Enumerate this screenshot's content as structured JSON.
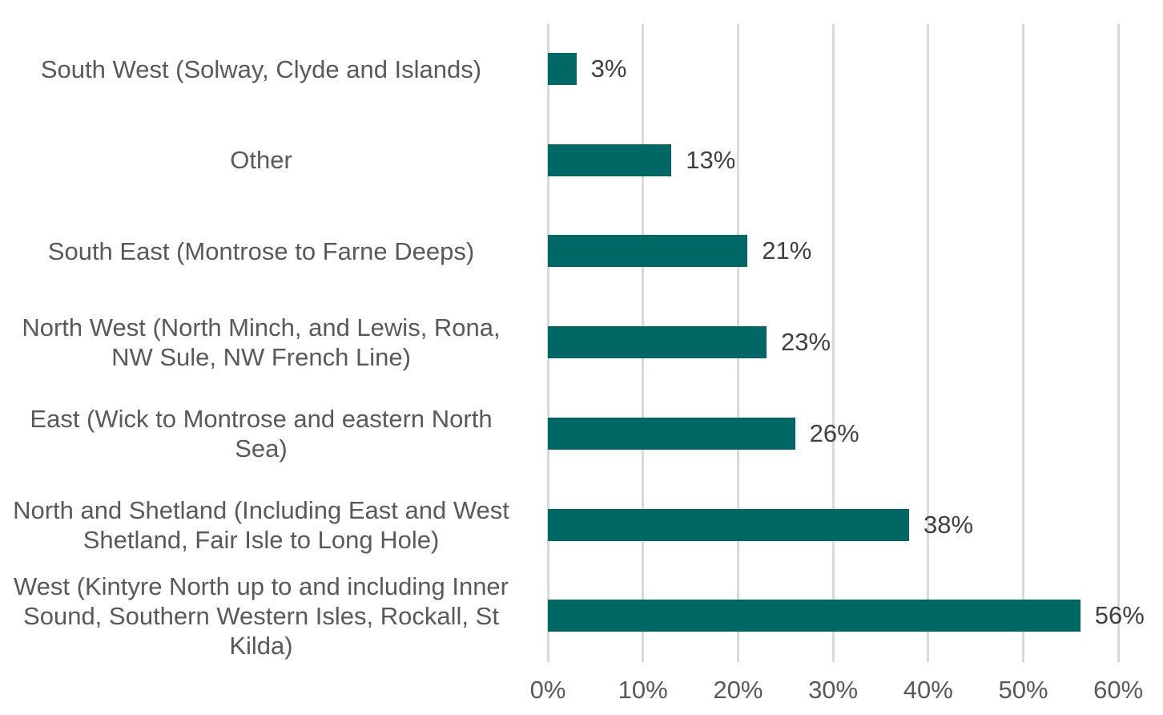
{
  "chart_data": {
    "type": "bar",
    "orientation": "horizontal",
    "title": "",
    "xlabel": "",
    "ylabel": "",
    "xlim": [
      0,
      60
    ],
    "x_ticks": [
      "0%",
      "10%",
      "20%",
      "30%",
      "40%",
      "50%",
      "60%"
    ],
    "grid": "vertical",
    "legend": "none",
    "bar_color": "#006864",
    "categories": [
      "South West (Solway, Clyde and Islands)",
      "Other",
      "South East (Montrose to Farne Deeps)",
      "North West (North Minch, and Lewis, Rona, NW Sule, NW French Line)",
      "East (Wick to Montrose and eastern North Sea)",
      "North and Shetland (Including East and West Shetland, Fair Isle to Long Hole)",
      "West (Kintyre North up to and including Inner Sound, Southern Western Isles, Rockall, St Kilda)"
    ],
    "category_lines": [
      [
        "South West (Solway, Clyde and Islands)"
      ],
      [
        "Other"
      ],
      [
        "South East (Montrose to Farne Deeps)"
      ],
      [
        "North West (North Minch, and Lewis, Rona,",
        "NW Sule, NW French Line)"
      ],
      [
        "East (Wick to Montrose and eastern North",
        "Sea)"
      ],
      [
        "North and Shetland (Including East and West",
        "Shetland, Fair Isle to Long Hole)"
      ],
      [
        "West (Kintyre North up to and including Inner",
        "Sound, Southern Western Isles, Rockall, St",
        "Kilda)"
      ]
    ],
    "values": [
      3,
      13,
      21,
      23,
      26,
      38,
      56
    ],
    "data_labels": [
      "3%",
      "13%",
      "21%",
      "23%",
      "26%",
      "38%",
      "56%"
    ]
  }
}
